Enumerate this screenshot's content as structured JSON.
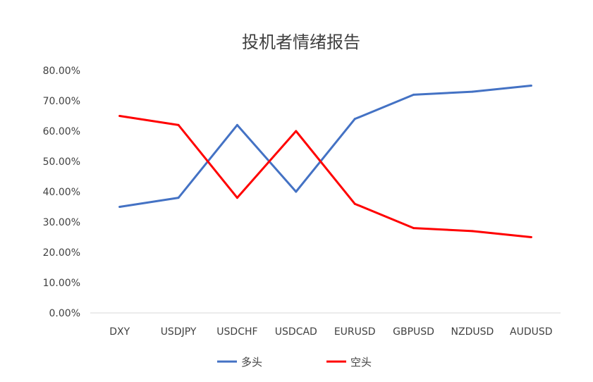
{
  "chart_data": {
    "type": "line",
    "title": "投机者情绪报告",
    "categories": [
      "DXY",
      "USDJPY",
      "USDCHF",
      "USDCAD",
      "EURUSD",
      "GBPUSD",
      "NZDUSD",
      "AUDUSD"
    ],
    "y_tick_labels": [
      "0.00%",
      "10.00%",
      "20.00%",
      "30.00%",
      "40.00%",
      "50.00%",
      "60.00%",
      "70.00%",
      "80.00%"
    ],
    "ylim": [
      0,
      0.8
    ],
    "grid": false,
    "legend_position": "bottom",
    "series": [
      {
        "name": "多头",
        "color": "#4472C4",
        "values": [
          0.35,
          0.38,
          0.62,
          0.4,
          0.64,
          0.72,
          0.73,
          0.75
        ]
      },
      {
        "name": "空头",
        "color": "#FF0000",
        "values": [
          0.65,
          0.62,
          0.38,
          0.6,
          0.36,
          0.28,
          0.27,
          0.25
        ]
      }
    ]
  }
}
